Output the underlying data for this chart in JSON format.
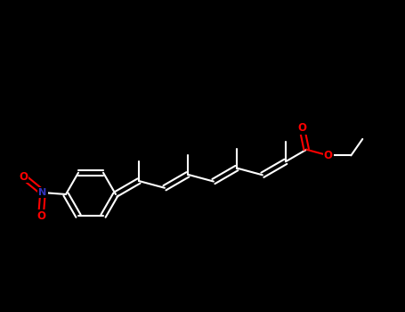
{
  "background_color": "#000000",
  "bond_color": "#ffffff",
  "bond_width": 1.5,
  "atom_colors": {
    "O": "#ff0000",
    "N": "#3333bb"
  },
  "fig_width": 4.55,
  "fig_height": 3.5,
  "dpi": 100
}
